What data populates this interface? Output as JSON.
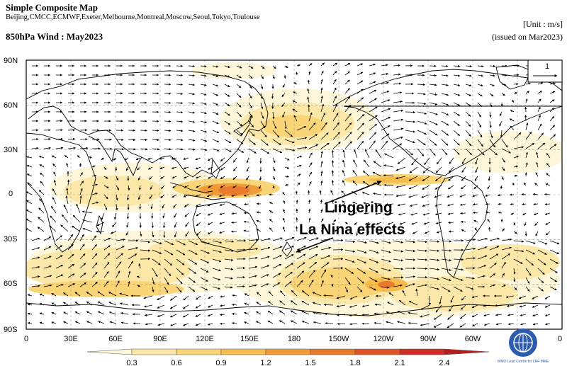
{
  "header": {
    "title": "Simple Composite Map",
    "models": "Beijing,CMCC,ECMWF,Exeter,Melbourne,Montreal,Moscow,Seoul,Tokyo,Toulouse",
    "variable": "850hPa Wind : May2023",
    "unit": "[Unit : m/s]",
    "issued": "(issued on Mar2023)"
  },
  "map": {
    "lat_labels": [
      "90N",
      "60N",
      "30N",
      "0",
      "30S",
      "60S",
      "90S"
    ],
    "lon_labels": [
      "0",
      "30E",
      "60E",
      "90E",
      "120E",
      "150E",
      "180",
      "150W",
      "120W",
      "90W",
      "60W",
      "0"
    ],
    "reference_vector": "1",
    "annotation": [
      "Lingering",
      "La Nina effects"
    ]
  },
  "colorbar": {
    "ticks": [
      "0.3",
      "0.6",
      "0.9",
      "1.2",
      "1.5",
      "1.8",
      "2.1",
      "2.4"
    ],
    "colors": [
      "#fdf6d8",
      "#fbe7a8",
      "#f9d577",
      "#f6bc4c",
      "#f19b37",
      "#ea7a2b",
      "#df5426",
      "#cf2b22",
      "#b71c1c"
    ]
  },
  "logo": {
    "text": "WMO Lead Centre for LRF MME"
  }
}
